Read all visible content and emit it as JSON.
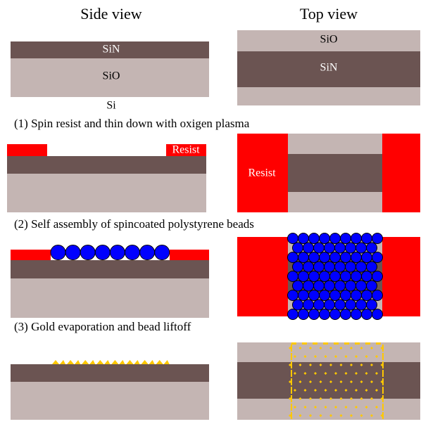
{
  "headers": {
    "side": "Side view",
    "top": "Top view"
  },
  "step0": {
    "side": {
      "sin": "SiN",
      "sio": "SiO",
      "si": "Si"
    },
    "top": {
      "sio": "SiO",
      "sin": "SiN"
    }
  },
  "captions": [
    "(1) Spin resist and thin down with oxigen plasma",
    "(2) Self assembly of spincoated polystyrene beads",
    "(3) Gold evaporation and bead liftoff"
  ],
  "step1": {
    "side_resist": "Resist",
    "top_resist": "Resist"
  }
}
